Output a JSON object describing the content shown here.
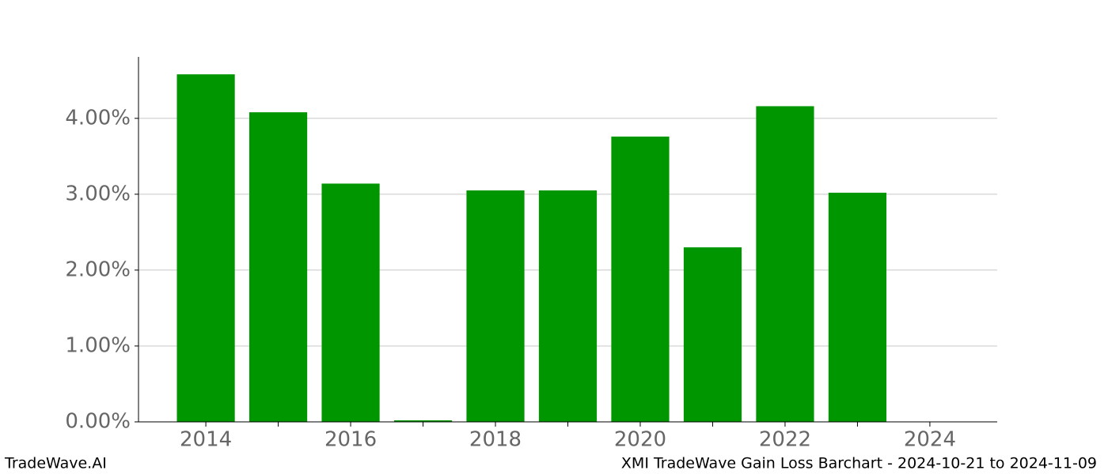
{
  "chart_data": {
    "type": "bar",
    "x": [
      2014,
      2015,
      2016,
      2017,
      2018,
      2019,
      2020,
      2021,
      2022,
      2023
    ],
    "values": [
      4.58,
      4.08,
      3.14,
      0.02,
      3.05,
      3.05,
      3.76,
      2.3,
      4.16,
      3.02
    ],
    "color": "#009600",
    "xlim": [
      2013.07,
      2024.93
    ],
    "xticks": [
      2014,
      2016,
      2018,
      2020,
      2022,
      2024
    ],
    "xminorticks": [
      2015,
      2017,
      2019,
      2021,
      2023
    ],
    "ylim": [
      0,
      4.81
    ],
    "yticks": [
      {
        "value": 0,
        "label": "0.00%"
      },
      {
        "value": 1,
        "label": "1.00%"
      },
      {
        "value": 2,
        "label": "2.00%"
      },
      {
        "value": 3,
        "label": "3.00%"
      },
      {
        "value": 4,
        "label": "4.00%"
      }
    ],
    "grid": true,
    "footer_left": "TradeWave.AI",
    "footer_right": "XMI TradeWave Gain Loss Barchart - 2024-10-21 to 2024-11-09"
  }
}
